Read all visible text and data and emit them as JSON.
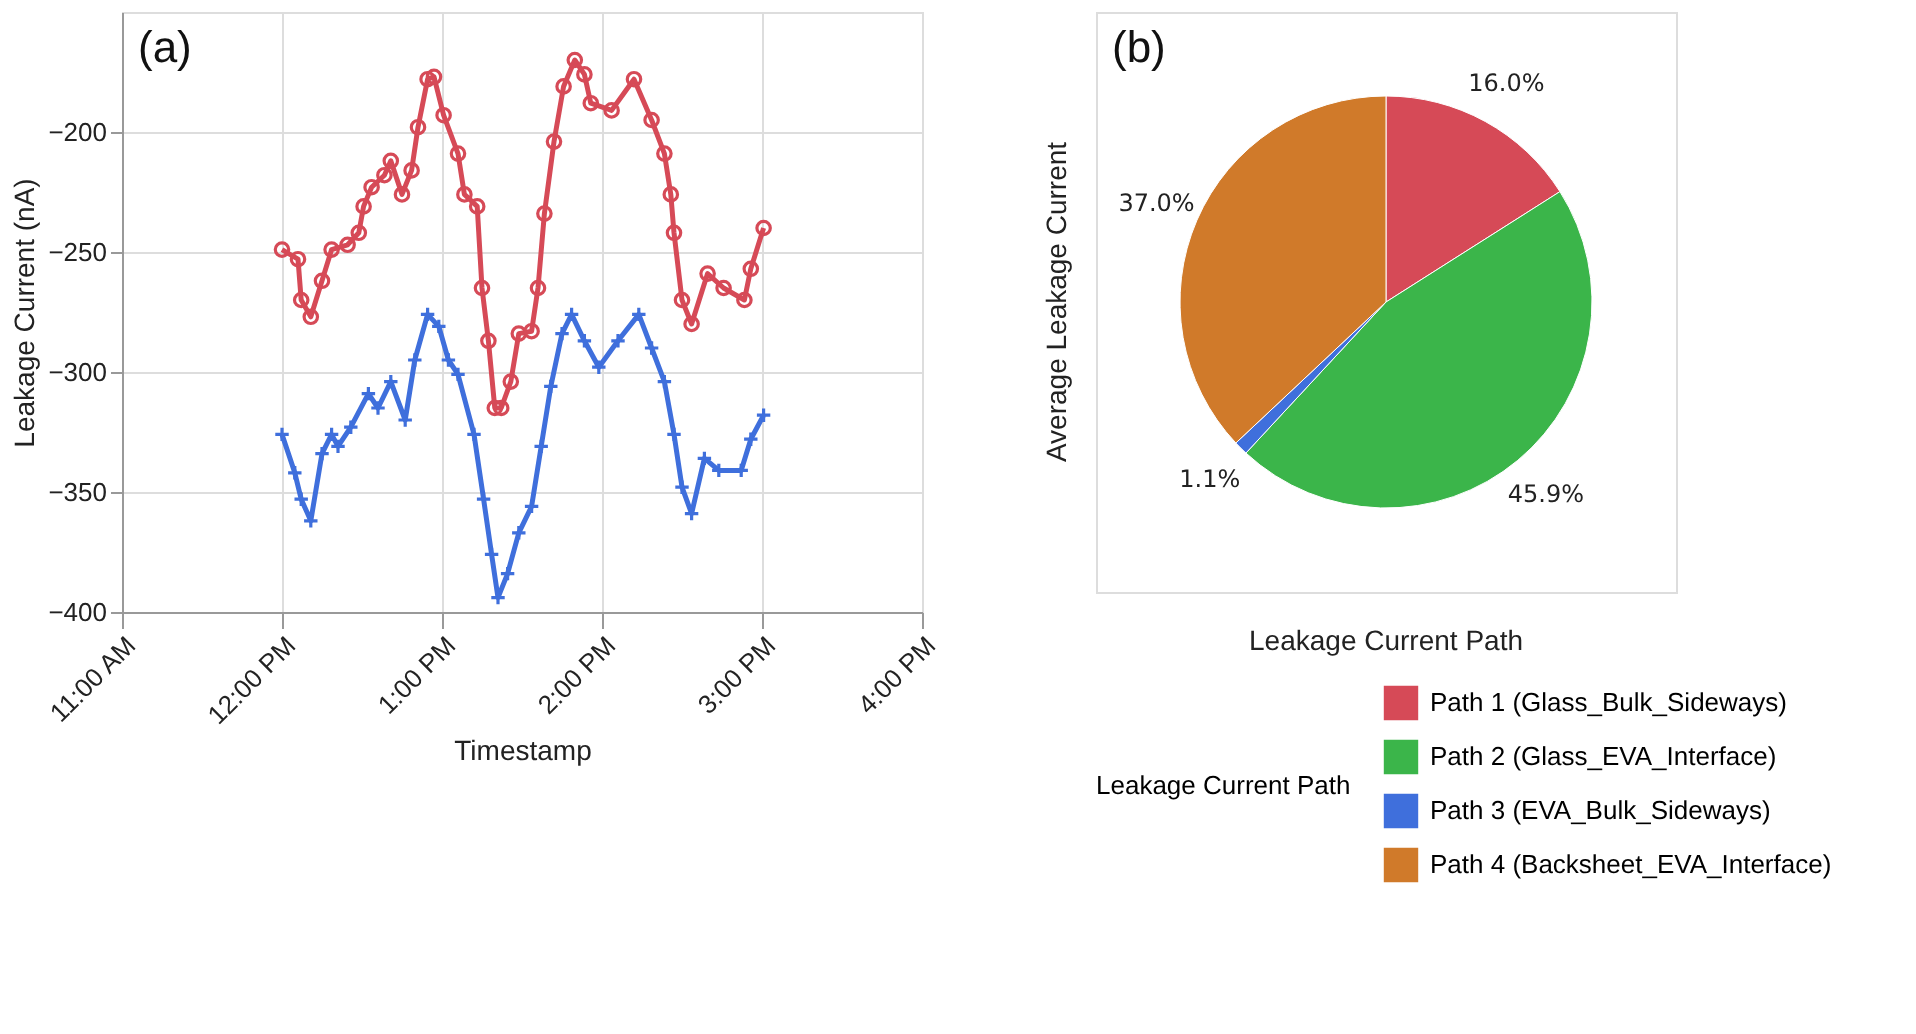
{
  "chart_data": [
    {
      "type": "line",
      "title": "(a)",
      "xlabel": "Timestamp",
      "ylabel": "Leakage Current (nA)",
      "xlim": [
        11,
        16
      ],
      "ylim": [
        -400,
        -150
      ],
      "xticks": [
        {
          "value": 11,
          "label": "11:00 AM"
        },
        {
          "value": 12,
          "label": "12:00 PM"
        },
        {
          "value": 13,
          "label": "1:00 PM"
        },
        {
          "value": 14,
          "label": "2:00 PM"
        },
        {
          "value": 15,
          "label": "3:00 PM"
        },
        {
          "value": 16,
          "label": "4:00 PM"
        }
      ],
      "yticks": [
        -400,
        -350,
        -300,
        -250,
        -200
      ],
      "grid": true,
      "line_style": "solid",
      "series": [
        {
          "color": "#d64a57",
          "marker": "circle",
          "x": [
            12.0,
            12.1,
            12.12,
            12.18,
            12.25,
            12.31,
            12.41,
            12.48,
            12.51,
            12.56,
            12.64,
            12.68,
            12.75,
            12.81,
            12.85,
            12.91,
            12.95,
            13.01,
            13.1,
            13.14,
            13.22,
            13.25,
            13.29,
            13.33,
            13.37,
            13.43,
            13.48,
            13.56,
            13.6,
            13.64,
            13.7,
            13.76,
            13.83,
            13.89,
            13.93,
            14.06,
            14.2,
            14.31,
            14.39,
            14.43,
            14.45,
            14.5,
            14.56,
            14.66,
            14.76,
            14.89,
            14.93,
            15.01
          ],
          "values": [
            -249,
            -253,
            -270,
            -277,
            -262,
            -249,
            -247,
            -242,
            -231,
            -223,
            -218,
            -212,
            -226,
            -216,
            -198,
            -178,
            -177,
            -193,
            -209,
            -226,
            -231,
            -265,
            -287,
            -315,
            -315,
            -304,
            -284,
            -283,
            -265,
            -234,
            -204,
            -181,
            -170,
            -176,
            -188,
            -191,
            -178,
            -195,
            -209,
            -226,
            -242,
            -270,
            -280,
            -259,
            -265,
            -270,
            -257,
            -240
          ]
        },
        {
          "color": "#3f6fdc",
          "marker": "cross",
          "x": [
            12.0,
            12.08,
            12.12,
            12.18,
            12.25,
            12.31,
            12.35,
            12.43,
            12.54,
            12.6,
            12.68,
            12.77,
            12.83,
            12.91,
            12.98,
            13.04,
            13.1,
            13.2,
            13.26,
            13.31,
            13.35,
            13.41,
            13.48,
            13.56,
            13.62,
            13.68,
            13.75,
            13.81,
            13.89,
            13.98,
            14.1,
            14.23,
            14.31,
            14.39,
            14.45,
            14.5,
            14.56,
            14.64,
            14.73,
            14.87,
            14.93,
            15.01
          ],
          "values": [
            -326,
            -342,
            -353,
            -362,
            -334,
            -326,
            -331,
            -323,
            -309,
            -315,
            -304,
            -320,
            -295,
            -276,
            -281,
            -295,
            -301,
            -326,
            -353,
            -376,
            -394,
            -384,
            -367,
            -356,
            -331,
            -306,
            -284,
            -276,
            -287,
            -298,
            -287,
            -276,
            -290,
            -304,
            -326,
            -348,
            -359,
            -336,
            -341,
            -341,
            -328,
            -318
          ]
        }
      ]
    },
    {
      "type": "pie",
      "title": "(b)",
      "xlabel": "Leakage Current Path",
      "ylabel": "Average Leakage Current",
      "legend_title": "Leakage Current Path",
      "legend": "bottom",
      "categories": [
        "Path 1 (Glass_Bulk_Sideways)",
        "Path 2 (Glass_EVA_Interface)",
        "Path 3 (EVA_Bulk_Sideways)",
        "Path 4 (Backsheet_EVA_Interface)"
      ],
      "values": [
        16.0,
        45.9,
        1.1,
        37.0
      ],
      "colors": [
        "#d64a57",
        "#3bb54a",
        "#3f6fdc",
        "#d07a2a"
      ],
      "value_labels": [
        "16.0%",
        "45.9%",
        "1.1%",
        "37.0%"
      ]
    }
  ]
}
